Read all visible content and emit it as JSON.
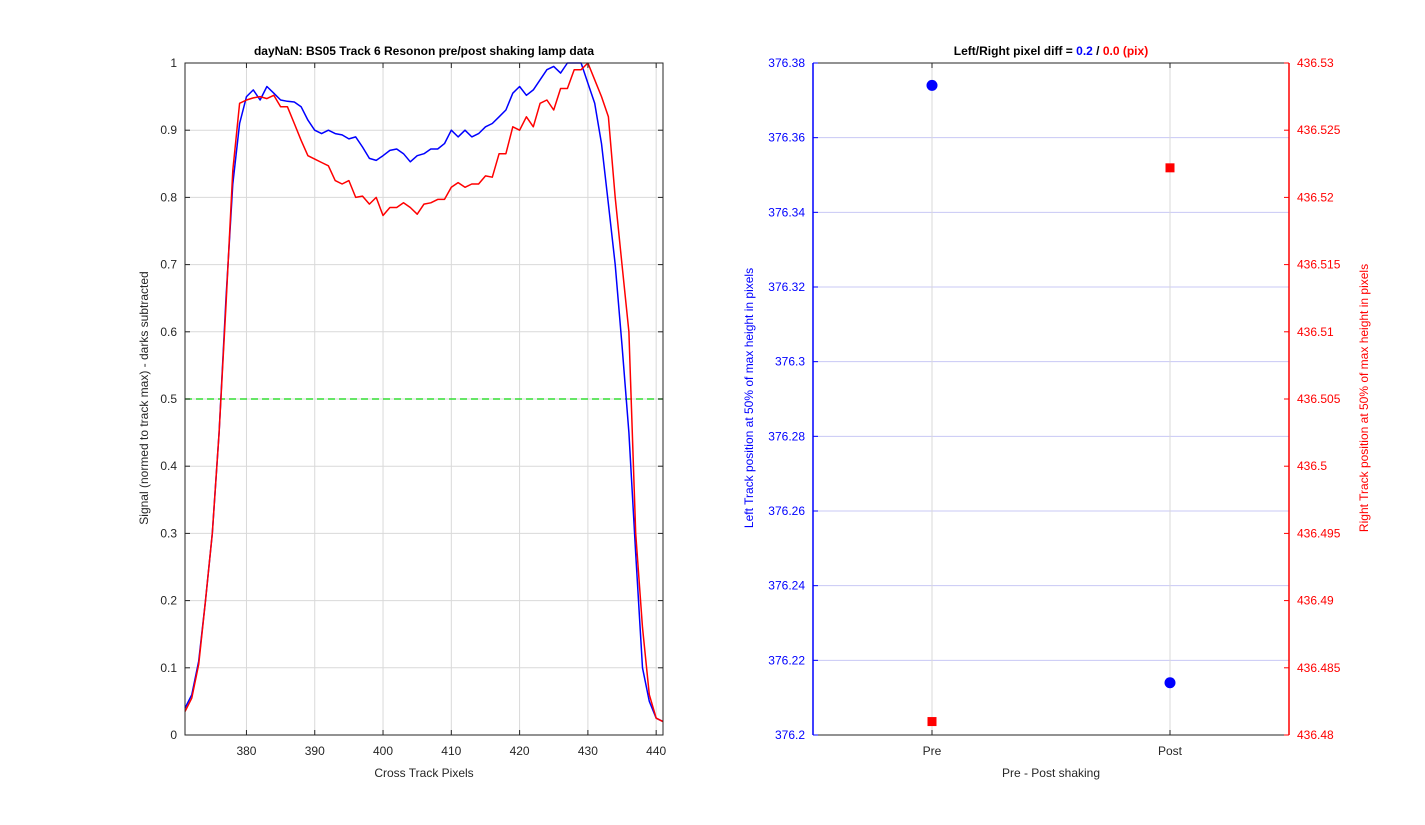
{
  "figure_colors": {
    "blue": "#0000ff",
    "red": "#ff0000",
    "green": "#33dd33",
    "grid": "#d9d9d9",
    "axis": "#262626"
  },
  "chart_data": [
    {
      "type": "line",
      "title": "dayNaN: BS05  Track 6 Resonon pre/post shaking lamp data",
      "xlabel": "Cross Track Pixels",
      "ylabel": "Signal (normed to track max) - darks subtracted",
      "xlim": [
        371,
        441
      ],
      "ylim": [
        0,
        1
      ],
      "xticks": [
        "380",
        "390",
        "400",
        "410",
        "420",
        "430",
        "440"
      ],
      "yticks": [
        "0",
        "0.1",
        "0.2",
        "0.3",
        "0.4",
        "0.5",
        "0.6",
        "0.7",
        "0.8",
        "0.9",
        "1"
      ],
      "grid": true,
      "reference_line": {
        "y": 0.5,
        "style": "dashed",
        "color": "#33dd33"
      },
      "series": [
        {
          "color": "#0000ff",
          "x": [
            371,
            372,
            373,
            374,
            375,
            376,
            377,
            378,
            379,
            380,
            381,
            382,
            383,
            384,
            385,
            386,
            387,
            388,
            389,
            390,
            391,
            392,
            393,
            394,
            395,
            396,
            397,
            398,
            399,
            400,
            401,
            402,
            403,
            404,
            405,
            406,
            407,
            408,
            409,
            410,
            411,
            412,
            413,
            414,
            415,
            416,
            417,
            418,
            419,
            420,
            421,
            422,
            423,
            424,
            425,
            426,
            427,
            428,
            429,
            430,
            431,
            432,
            433,
            434,
            435,
            436,
            437,
            438,
            439,
            440,
            441
          ],
          "y": [
            0.04,
            0.06,
            0.11,
            0.2,
            0.3,
            0.45,
            0.65,
            0.82,
            0.91,
            0.95,
            0.96,
            0.945,
            0.965,
            0.955,
            0.945,
            0.943,
            0.942,
            0.935,
            0.915,
            0.9,
            0.895,
            0.9,
            0.895,
            0.893,
            0.887,
            0.89,
            0.875,
            0.858,
            0.855,
            0.862,
            0.87,
            0.872,
            0.865,
            0.853,
            0.862,
            0.865,
            0.872,
            0.872,
            0.88,
            0.9,
            0.89,
            0.9,
            0.89,
            0.895,
            0.905,
            0.91,
            0.92,
            0.93,
            0.955,
            0.965,
            0.952,
            0.96,
            0.975,
            0.99,
            0.995,
            0.985,
            1.0,
            1.0,
            1.0,
            0.97,
            0.94,
            0.88,
            0.79,
            0.7,
            0.58,
            0.45,
            0.27,
            0.1,
            0.05,
            0.025,
            0.02
          ]
        },
        {
          "color": "#ff0000",
          "x": [
            371,
            372,
            373,
            374,
            375,
            376,
            377,
            378,
            379,
            380,
            381,
            382,
            383,
            384,
            385,
            386,
            387,
            388,
            389,
            390,
            391,
            392,
            393,
            394,
            395,
            396,
            397,
            398,
            399,
            400,
            401,
            402,
            403,
            404,
            405,
            406,
            407,
            408,
            409,
            410,
            411,
            412,
            413,
            414,
            415,
            416,
            417,
            418,
            419,
            420,
            421,
            422,
            423,
            424,
            425,
            426,
            427,
            428,
            429,
            430,
            431,
            432,
            433,
            434,
            435,
            436,
            437,
            438,
            439,
            440,
            441
          ],
          "y": [
            0.035,
            0.055,
            0.105,
            0.2,
            0.3,
            0.45,
            0.64,
            0.84,
            0.94,
            0.945,
            0.948,
            0.95,
            0.947,
            0.952,
            0.935,
            0.935,
            0.91,
            0.885,
            0.862,
            0.857,
            0.852,
            0.847,
            0.825,
            0.82,
            0.825,
            0.8,
            0.802,
            0.79,
            0.8,
            0.773,
            0.785,
            0.785,
            0.792,
            0.785,
            0.775,
            0.79,
            0.792,
            0.797,
            0.797,
            0.815,
            0.822,
            0.815,
            0.82,
            0.82,
            0.832,
            0.83,
            0.865,
            0.865,
            0.905,
            0.9,
            0.92,
            0.905,
            0.94,
            0.945,
            0.93,
            0.962,
            0.962,
            0.99,
            0.99,
            1.0,
            0.975,
            0.95,
            0.92,
            0.8,
            0.7,
            0.6,
            0.3,
            0.16,
            0.06,
            0.025,
            0.02
          ]
        }
      ]
    },
    {
      "type": "scatter",
      "title_parts": [
        {
          "text": "Left/Right pixel diff = ",
          "color": "#000000"
        },
        {
          "text": "0.2",
          "color": "#0000ff"
        },
        {
          "text": " / ",
          "color": "#000000"
        },
        {
          "text": "0.0 (pix)",
          "color": "#ff0000"
        }
      ],
      "xlabel": "Pre - Post shaking",
      "ylabel_left": "Left Track position at 50% of max height in pixels",
      "ylabel_right": "Right Track position at 50% of max height in pixels",
      "categories": [
        "Pre",
        "Post"
      ],
      "xlim": [
        0.5,
        2.5
      ],
      "ylim_left": [
        376.2,
        376.38
      ],
      "ylim_right": [
        436.48,
        436.53
      ],
      "yticks_left": [
        "376.2",
        "376.22",
        "376.24",
        "376.26",
        "376.28",
        "376.3",
        "376.32",
        "376.34",
        "376.36",
        "376.38"
      ],
      "yticks_right": [
        "436.48",
        "436.485",
        "436.49",
        "436.495",
        "436.5",
        "436.505",
        "436.51",
        "436.515",
        "436.52",
        "436.525",
        "436.53"
      ],
      "grid": true,
      "series": [
        {
          "axis": "left",
          "marker": "circle",
          "color": "#0000ff",
          "values": [
            376.374,
            376.214
          ]
        },
        {
          "axis": "right",
          "marker": "square",
          "color": "#ff0000",
          "values": [
            436.481,
            436.5222
          ]
        }
      ]
    }
  ]
}
